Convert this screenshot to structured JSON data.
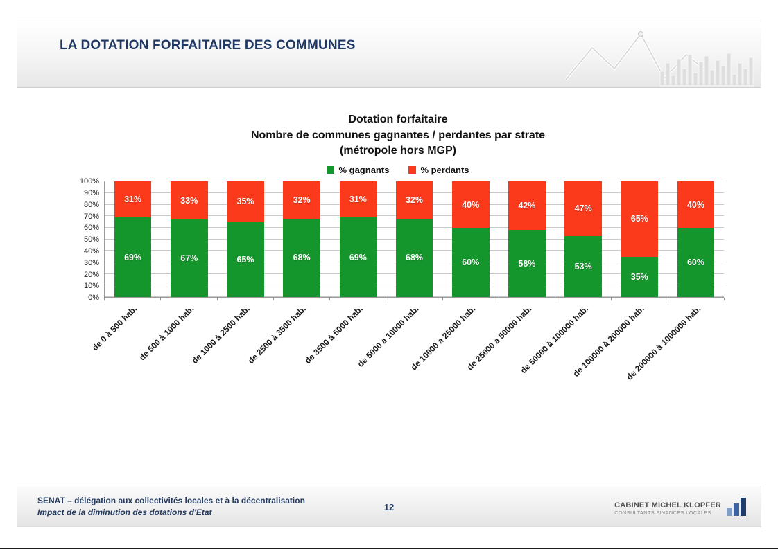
{
  "header": {
    "title": "LA DOTATION FORFAITAIRE DES COMMUNES"
  },
  "footer": {
    "left_line1": "SENAT – délégation aux collectivités locales et à la décentralisation",
    "left_line2": "Impact de la diminution des dotations d'Etat",
    "page_number": "12",
    "logo_line1": "CABINET MICHEL KLOPFER",
    "logo_line2": "CONSULTANTS FINANCES LOCALES"
  },
  "chart_data": {
    "type": "bar",
    "stacked": true,
    "title": "Dotation forfaitaire",
    "subtitle": "Nombre de communes gagnantes / perdantes par strate",
    "subtitle2": "(métropole hors MGP)",
    "categories": [
      "de 0 à 500 hab.",
      "de 500 à 1000 hab.",
      "de 1000 à 2500 hab.",
      "de 2500 à 3500 hab.",
      "de 3500 à 5000 hab.",
      "de 5000 à 10000 hab.",
      "de 10000 à 25000 hab.",
      "de 25000 à 50000 hab.",
      "de 50000 à 100000 hab.",
      "de 100000 à 200000 hab.",
      "de 200000 à 1000000 hab."
    ],
    "series": [
      {
        "name": "% gagnants",
        "color": "#15962d",
        "values": [
          69,
          67,
          65,
          68,
          69,
          68,
          60,
          58,
          53,
          35,
          60
        ]
      },
      {
        "name": "% perdants",
        "color": "#fb3a1c",
        "values": [
          31,
          33,
          35,
          32,
          31,
          32,
          40,
          42,
          47,
          65,
          40
        ]
      }
    ],
    "y_ticks": [
      "0%",
      "10%",
      "20%",
      "30%",
      "40%",
      "50%",
      "60%",
      "70%",
      "80%",
      "90%",
      "100%"
    ],
    "ylim": [
      0,
      100
    ],
    "value_suffix": "%",
    "grid": true,
    "legend_position": "top"
  }
}
